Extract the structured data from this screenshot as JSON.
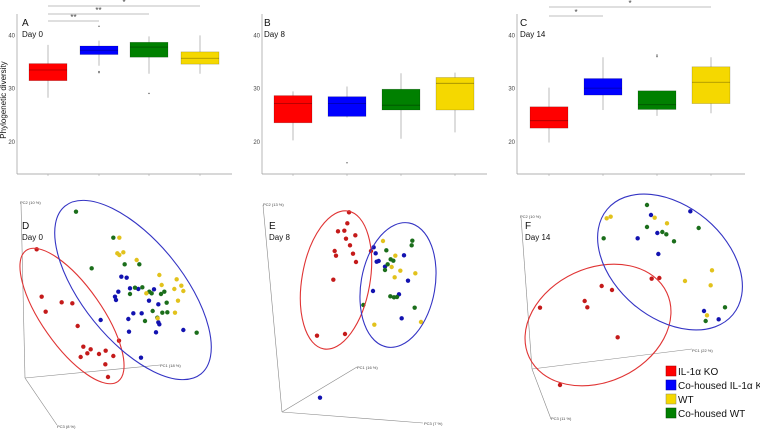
{
  "colors": {
    "IL-1α KO": "#ff0000",
    "Co-housed IL-1α KO": "#0000ff",
    "WT": "#f5d800",
    "Co-housed WT": "#008000"
  },
  "dot_colors": {
    "IL-1α KO": "#c41a1a",
    "Co-housed IL-1α KO": "#1212b0",
    "WT": "#e2c21c",
    "Co-housed WT": "#1b6e1b"
  },
  "legend": [
    "IL-1α KO",
    "Co-housed IL-1α KO",
    "WT",
    "Co-housed WT"
  ],
  "chart_data": [
    {
      "type": "box",
      "panel": "A",
      "subtitle": "Day 0",
      "ylabel": "Phylogenetic diversity",
      "ylim": [
        14,
        44
      ],
      "yticks": [
        20,
        30,
        40
      ],
      "groups": [
        "IL-1α KO",
        "Co-housed IL-1α KO",
        "Co-housed WT",
        "WT"
      ],
      "boxes": [
        {
          "group": "IL-1α KO",
          "min": 28.3,
          "q1": 31.5,
          "median": 33.5,
          "q3": 34.7,
          "max": 38.2,
          "outliers": []
        },
        {
          "group": "Co-housed IL-1α KO",
          "min": 34.3,
          "q1": 36.4,
          "median": 37.2,
          "q3": 38.0,
          "max": 39.0,
          "outliers": [
            33.2,
            33.0,
            41.7
          ]
        },
        {
          "group": "Co-housed WT",
          "min": 32.8,
          "q1": 35.9,
          "median": 37.8,
          "q3": 38.7,
          "max": 39.8,
          "outliers": [
            29.1
          ]
        },
        {
          "group": "WT",
          "min": 32.8,
          "q1": 34.6,
          "median": 35.7,
          "q3": 36.9,
          "max": 40.0,
          "outliers": []
        }
      ],
      "significance": [
        {
          "from": "IL-1α KO",
          "to": "WT",
          "label": "*"
        },
        {
          "from": "IL-1α KO",
          "to": "Co-housed WT",
          "label": "**"
        },
        {
          "from": "IL-1α KO",
          "to": "Co-housed IL-1α KO",
          "label": "**"
        }
      ]
    },
    {
      "type": "box",
      "panel": "B",
      "subtitle": "Day 8",
      "ylim": [
        14,
        44
      ],
      "yticks": [
        20,
        30,
        40
      ],
      "groups": [
        "IL-1α KO",
        "Co-housed IL-1α KO",
        "Co-housed WT",
        "WT"
      ],
      "boxes": [
        {
          "group": "IL-1α KO",
          "min": 20.3,
          "q1": 23.6,
          "median": 27.2,
          "q3": 28.7,
          "max": 29.5,
          "outliers": []
        },
        {
          "group": "Co-housed IL-1α KO",
          "min": 24.6,
          "q1": 24.8,
          "median": 27.2,
          "q3": 28.5,
          "max": 30.4,
          "outliers": [
            16.1
          ]
        },
        {
          "group": "Co-housed WT",
          "min": 20.6,
          "q1": 26.0,
          "median": 26.9,
          "q3": 29.9,
          "max": 32.9,
          "outliers": []
        },
        {
          "group": "WT",
          "min": 21.8,
          "q1": 26.0,
          "median": 31.0,
          "q3": 32.1,
          "max": 33.0,
          "outliers": []
        }
      ],
      "significance": []
    },
    {
      "type": "box",
      "panel": "C",
      "subtitle": "Day 14",
      "ylim": [
        14,
        44
      ],
      "yticks": [
        20,
        30,
        40
      ],
      "groups": [
        "IL-1α KO",
        "Co-housed IL-1α KO",
        "Co-housed WT",
        "WT"
      ],
      "boxes": [
        {
          "group": "IL-1α KO",
          "min": 19.9,
          "q1": 22.6,
          "median": 24.0,
          "q3": 26.6,
          "max": 30.2,
          "outliers": []
        },
        {
          "group": "Co-housed IL-1α KO",
          "min": 26.0,
          "q1": 28.8,
          "median": 30.1,
          "q3": 31.9,
          "max": 35.9,
          "outliers": []
        },
        {
          "group": "Co-housed WT",
          "min": 24.9,
          "q1": 26.1,
          "median": 27.0,
          "q3": 29.6,
          "max": 29.6,
          "outliers": [
            36.3,
            36.0
          ]
        },
        {
          "group": "WT",
          "min": 25.4,
          "q1": 27.2,
          "median": 31.2,
          "q3": 34.1,
          "max": 35.9,
          "outliers": []
        }
      ],
      "significance": [
        {
          "from": "IL-1α KO",
          "to": "WT",
          "label": "*"
        },
        {
          "from": "IL-1α KO",
          "to": "Co-housed IL-1α KO",
          "label": "*"
        }
      ]
    },
    {
      "type": "scatter3d",
      "panel": "D",
      "subtitle": "Day 0",
      "axes": [
        "PC1 (18 %)",
        "PC2 (10 %)",
        "PC3 (8 %)"
      ]
    },
    {
      "type": "scatter3d",
      "panel": "E",
      "subtitle": "Day 8",
      "axes": [
        "PC1 (16 %)",
        "PC2 (13 %)",
        "PC3 (7 %)"
      ]
    },
    {
      "type": "scatter3d",
      "panel": "F",
      "subtitle": "Day 14",
      "axes": [
        "PC1 (22 %)",
        "PC2 (10 %)",
        "PC3 (11 %)"
      ]
    }
  ]
}
